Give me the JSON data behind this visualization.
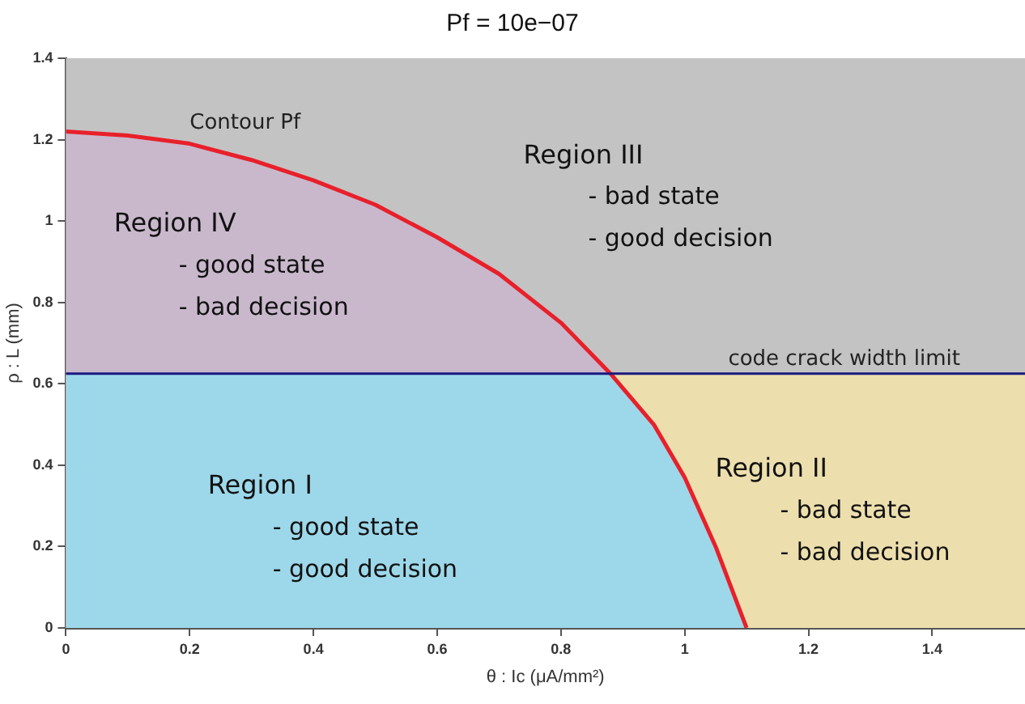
{
  "chart_data": {
    "type": "line",
    "title": "Pf = 10e−07",
    "xlabel": "θ : Ic (μA/mm²)",
    "ylabel": "ρ : L (mm)",
    "xlim": [
      0,
      1.55
    ],
    "xticks": [
      0,
      0.2,
      0.4,
      0.6,
      0.8,
      1,
      1.2,
      1.4
    ],
    "ylim": [
      0,
      1.4
    ],
    "yticks": [
      0,
      0.2,
      0.4,
      0.6,
      0.8,
      1,
      1.2,
      1.4
    ],
    "grid": false,
    "legend": false,
    "marker": "none",
    "line_style": "solid",
    "bands": [
      {
        "axis": "y",
        "from": 0.625,
        "to": 1.4,
        "color": "#c3c3c3"
      },
      {
        "axis": "y",
        "from": 0,
        "to": 0.625,
        "color": "#eddfad"
      }
    ],
    "series": [
      {
        "type": "area",
        "color": "#c9b8cc",
        "x": [
          0,
          0.1,
          0.2,
          0.3,
          0.4,
          0.5,
          0.6,
          0.7,
          0.8,
          0.88
        ],
        "values": [
          1.22,
          1.21,
          1.19,
          1.15,
          1.1,
          1.04,
          0.96,
          0.87,
          0.75,
          0.625
        ]
      },
      {
        "type": "area",
        "color": "#9dd8ea",
        "x": [
          0,
          0.88,
          0.95,
          1,
          1.05,
          1.1
        ],
        "values": [
          0.625,
          0.625,
          0.5,
          0.37,
          0.2,
          0
        ]
      },
      {
        "type": "line",
        "name": "Contour Pf",
        "color": "#e8202a",
        "x": [
          0,
          0.1,
          0.2,
          0.3,
          0.4,
          0.5,
          0.6,
          0.7,
          0.8,
          0.88,
          0.95,
          1,
          1.05,
          1.1
        ],
        "values": [
          1.22,
          1.21,
          1.19,
          1.15,
          1.1,
          1.04,
          0.96,
          0.87,
          0.75,
          0.625,
          0.5,
          0.37,
          0.2,
          0
        ]
      }
    ],
    "ref_lines": [
      {
        "axis": "y",
        "value": 0.625,
        "label": "code crack width limit",
        "color": "#1a1a80"
      }
    ],
    "annotations": [
      "Region IV\n- good state\n- bad decision",
      "Region III\n- bad state\n- good decision",
      "Region I\n- good state\n- good decision",
      "Region II\n- bad state\n- bad decision"
    ]
  }
}
